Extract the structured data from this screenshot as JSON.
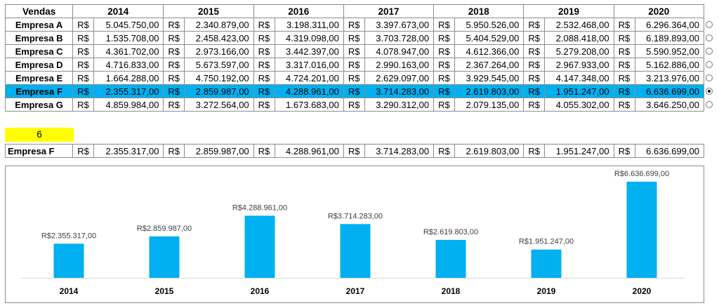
{
  "table": {
    "header": "Vendas",
    "years": [
      "2014",
      "2015",
      "2016",
      "2017",
      "2018",
      "2019",
      "2020"
    ],
    "currency": "R$",
    "rows": [
      {
        "name": "Empresa A",
        "values": [
          "5.045.750,00",
          "2.340.879,00",
          "3.198.311,00",
          "3.397.673,00",
          "5.950.526,00",
          "2.532.468,00",
          "6.296.364,00"
        ],
        "selected": false
      },
      {
        "name": "Empresa B",
        "values": [
          "1.535.708,00",
          "2.458.423,00",
          "4.319.098,00",
          "3.703.728,00",
          "5.404.529,00",
          "2.088.418,00",
          "6.189.893,00"
        ],
        "selected": false
      },
      {
        "name": "Empresa C",
        "values": [
          "4.361.702,00",
          "2.973.166,00",
          "3.442.397,00",
          "4.078.947,00",
          "4.612.366,00",
          "5.279.208,00",
          "5.590.952,00"
        ],
        "selected": false
      },
      {
        "name": "Empresa D",
        "values": [
          "4.716.833,00",
          "5.673.597,00",
          "3.317.016,00",
          "2.990.163,00",
          "2.367.264,00",
          "2.967.933,00",
          "5.162.886,00"
        ],
        "selected": false
      },
      {
        "name": "Empresa E",
        "values": [
          "1.664.288,00",
          "4.750.192,00",
          "4.724.201,00",
          "2.629.097,00",
          "3.929.545,00",
          "4.147.348,00",
          "3.213.976,00"
        ],
        "selected": false
      },
      {
        "name": "Empresa F",
        "values": [
          "2.355.317,00",
          "2.859.987,00",
          "4.288.961,00",
          "3.714.283,00",
          "2.619.803,00",
          "1.951.247,00",
          "6.636.699,00"
        ],
        "selected": true
      },
      {
        "name": "Empresa G",
        "values": [
          "4.859.984,00",
          "3.272.564,00",
          "1.673.683,00",
          "3.290.312,00",
          "2.079.135,00",
          "4.055.302,00",
          "3.646.250,00"
        ],
        "selected": false
      }
    ],
    "selection_color": "#00b0f0"
  },
  "selected_index": "6",
  "selected_row": {
    "name": "Empresa F",
    "values": [
      "2.355.317,00",
      "2.859.987,00",
      "4.288.961,00",
      "3.714.283,00",
      "2.619.803,00",
      "1.951.247,00",
      "6.636.699,00"
    ]
  },
  "chart_data": {
    "type": "bar",
    "title": "",
    "xlabel": "",
    "ylabel": "",
    "categories": [
      "2014",
      "2015",
      "2016",
      "2017",
      "2018",
      "2019",
      "2020"
    ],
    "values": [
      2355317,
      2859987,
      4288961,
      3714283,
      2619803,
      1951247,
      6636699
    ],
    "data_labels": [
      "R$2.355.317,00",
      "R$2.859.987,00",
      "R$4.288.961,00",
      "R$3.714.283,00",
      "R$2.619.803,00",
      "R$1.951.247,00",
      "R$6.636.699,00"
    ],
    "ylim": [
      0,
      7000000
    ],
    "grid": false,
    "legend": "none",
    "bar_color": "#00b0f0"
  }
}
